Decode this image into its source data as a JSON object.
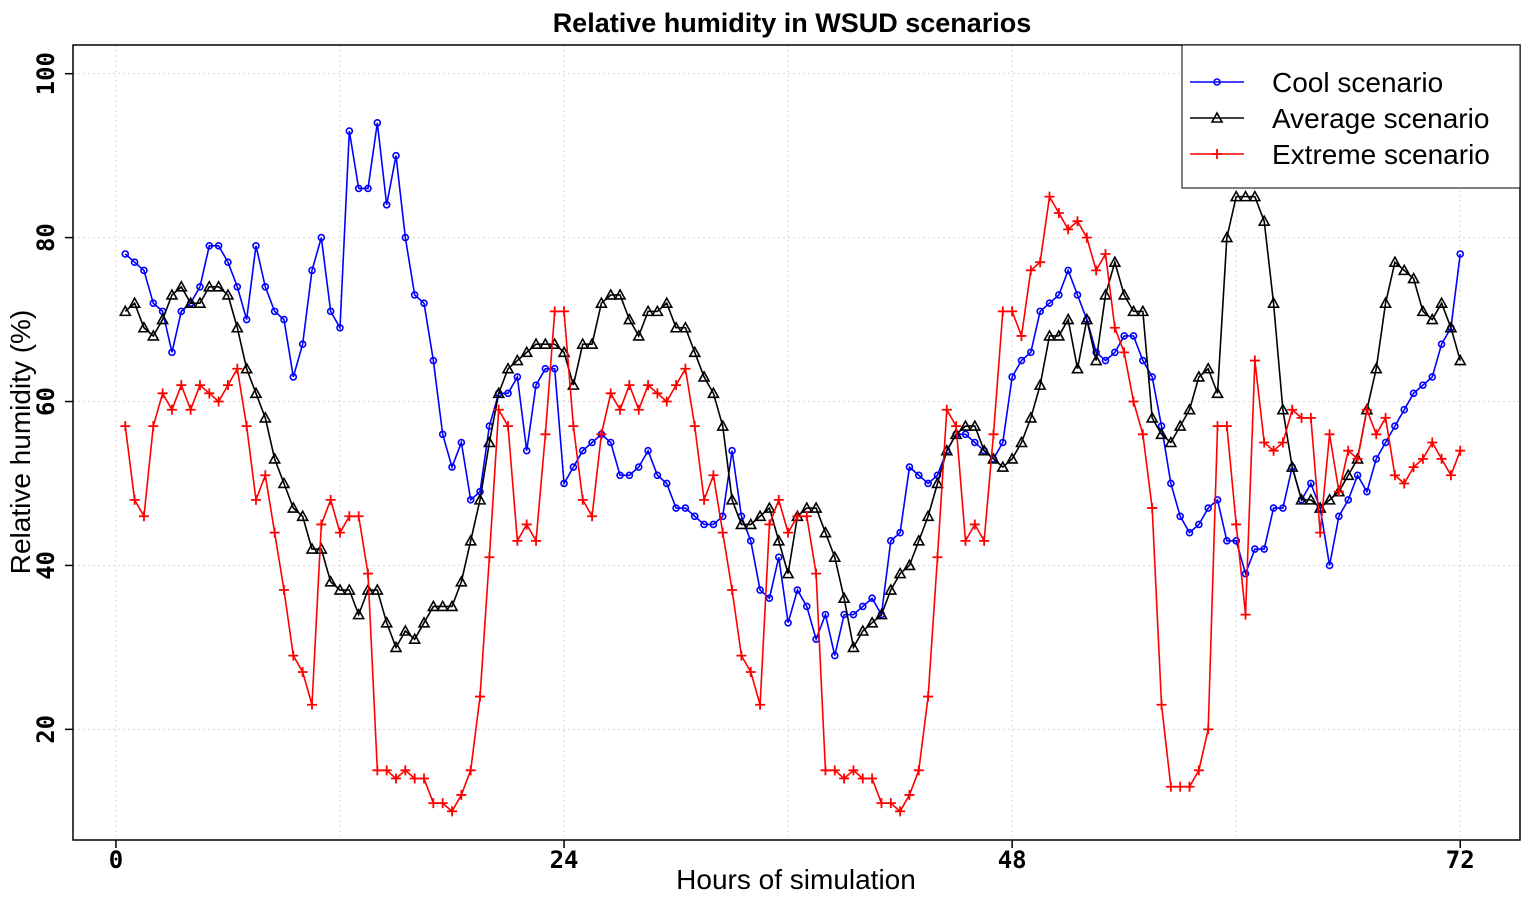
{
  "chart_data": {
    "type": "line",
    "title": "Relative humidity in WSUD scenarios",
    "xlabel": "Hours of simulation",
    "ylabel": "Relative humidity (%)",
    "xlim": [
      -2.3,
      75.2
    ],
    "ylim": [
      6.5,
      103.5
    ],
    "xticks": [
      0,
      24,
      48,
      72
    ],
    "yticks": [
      20,
      40,
      60,
      80,
      100
    ],
    "grid": true,
    "legend": "top-right",
    "x": [
      0.5,
      1,
      1.5,
      2,
      2.5,
      3,
      3.5,
      4,
      4.5,
      5,
      5.5,
      6,
      6.5,
      7,
      7.5,
      8,
      8.5,
      9,
      9.5,
      10,
      10.5,
      11,
      11.5,
      12,
      12.5,
      13,
      13.5,
      14,
      14.5,
      15,
      15.5,
      16,
      16.5,
      17,
      17.5,
      18,
      18.5,
      19,
      19.5,
      20,
      20.5,
      21,
      21.5,
      22,
      22.5,
      23,
      23.5,
      24,
      24.5,
      25,
      25.5,
      26,
      26.5,
      27,
      27.5,
      28,
      28.5,
      29,
      29.5,
      30,
      30.5,
      31,
      31.5,
      32,
      32.5,
      33,
      33.5,
      34,
      34.5,
      35,
      35.5,
      36,
      36.5,
      37,
      37.5,
      38,
      38.5,
      39,
      39.5,
      40,
      40.5,
      41,
      41.5,
      42,
      42.5,
      43,
      43.5,
      44,
      44.5,
      45,
      45.5,
      46,
      46.5,
      47,
      47.5,
      48,
      48.5,
      49,
      49.5,
      50,
      50.5,
      51,
      51.5,
      52,
      52.5,
      53,
      53.5,
      54,
      54.5,
      55,
      55.5,
      56,
      56.5,
      57,
      57.5,
      58,
      58.5,
      59,
      59.5,
      60,
      60.5,
      61,
      61.5,
      62,
      62.5,
      63,
      63.5,
      64,
      64.5,
      65,
      65.5,
      66,
      66.5,
      67,
      67.5,
      68,
      68.5,
      69,
      69.5,
      70,
      70.5,
      71,
      71.5,
      72
    ],
    "series": [
      {
        "name": "Cool scenario",
        "color": "#0000ff",
        "marker": "circle",
        "values": [
          78,
          77,
          76,
          72,
          71,
          66,
          71,
          72,
          74,
          79,
          79,
          77,
          74,
          70,
          79,
          74,
          71,
          70,
          63,
          67,
          76,
          80,
          71,
          69,
          93,
          86,
          86,
          94,
          84,
          90,
          80,
          73,
          72,
          65,
          56,
          52,
          55,
          48,
          49,
          57,
          61,
          61,
          63,
          54,
          62,
          64,
          64,
          50,
          52,
          54,
          55,
          56,
          55,
          51,
          51,
          52,
          54,
          51,
          50,
          47,
          47,
          46,
          45,
          45,
          46,
          54,
          46,
          43,
          37,
          36,
          41,
          33,
          37,
          35,
          31,
          34,
          29,
          34,
          34,
          35,
          36,
          34,
          43,
          44,
          52,
          51,
          50,
          51,
          54,
          56,
          56,
          55,
          54,
          53,
          55,
          63,
          65,
          66,
          71,
          72,
          73,
          76,
          73,
          70,
          66,
          65,
          66,
          68,
          68,
          65,
          63,
          57,
          50,
          46,
          44,
          45,
          47,
          48,
          43,
          43,
          39,
          42,
          42,
          47,
          47,
          52,
          48,
          50,
          47,
          40,
          46,
          48,
          51,
          49,
          53,
          55,
          57,
          59,
          61,
          62,
          63,
          67,
          69,
          78
        ]
      },
      {
        "name": "Average scenario",
        "color": "#000000",
        "marker": "triangle",
        "values": [
          71,
          72,
          69,
          68,
          70,
          73,
          74,
          72,
          72,
          74,
          74,
          73,
          69,
          64,
          61,
          58,
          53,
          50,
          47,
          46,
          42,
          42,
          38,
          37,
          37,
          34,
          37,
          37,
          33,
          30,
          32,
          31,
          33,
          35,
          35,
          35,
          38,
          43,
          48,
          55,
          61,
          64,
          65,
          66,
          67,
          67,
          67,
          66,
          62,
          67,
          67,
          72,
          73,
          73,
          70,
          68,
          71,
          71,
          72,
          69,
          69,
          66,
          63,
          61,
          57,
          48,
          45,
          45,
          46,
          47,
          43,
          39,
          46,
          47,
          47,
          44,
          41,
          36,
          30,
          32,
          33,
          34,
          37,
          39,
          40,
          43,
          46,
          50,
          54,
          56,
          57,
          57,
          54,
          53,
          52,
          53,
          55,
          58,
          62,
          68,
          68,
          70,
          64,
          70,
          65,
          73,
          77,
          73,
          71,
          71,
          58,
          56,
          55,
          57,
          59,
          63,
          64,
          61,
          80,
          85,
          85,
          85,
          82,
          72,
          59,
          52,
          48,
          48,
          47,
          48,
          49,
          51,
          53,
          59,
          64,
          72,
          77,
          76,
          75,
          71,
          70,
          72,
          69,
          65
        ]
      },
      {
        "name": "Extreme scenario",
        "color": "#ff0000",
        "marker": "plus",
        "values": [
          57,
          48,
          46,
          57,
          61,
          59,
          62,
          59,
          62,
          61,
          60,
          62,
          64,
          57,
          48,
          51,
          44,
          37,
          29,
          27,
          23,
          45,
          48,
          44,
          46,
          46,
          39,
          15,
          15,
          14,
          15,
          14,
          14,
          11,
          11,
          10,
          12,
          15,
          24,
          41,
          59,
          57,
          43,
          45,
          43,
          56,
          71,
          71,
          57,
          48,
          46,
          56,
          61,
          59,
          62,
          59,
          62,
          61,
          60,
          62,
          64,
          57,
          48,
          51,
          44,
          37,
          29,
          27,
          23,
          45,
          48,
          44,
          46,
          46,
          39,
          15,
          15,
          14,
          15,
          14,
          14,
          11,
          11,
          10,
          12,
          15,
          24,
          41,
          59,
          57,
          43,
          45,
          43,
          56,
          71,
          71,
          68,
          76,
          77,
          85,
          83,
          81,
          82,
          80,
          76,
          78,
          69,
          66,
          60,
          56,
          47,
          23,
          13,
          13,
          13,
          15,
          20,
          57,
          57,
          45,
          34,
          65,
          55,
          54,
          55,
          59,
          58,
          58,
          44,
          56,
          49,
          54,
          53,
          59,
          56,
          58,
          51,
          50,
          52,
          53,
          55,
          53,
          51,
          54
        ]
      }
    ]
  }
}
